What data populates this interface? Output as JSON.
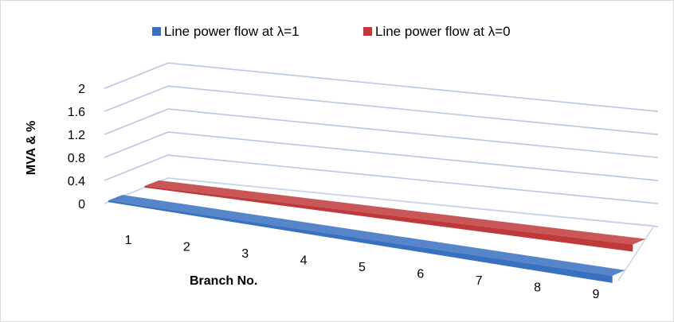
{
  "chart_data": {
    "type": "bar",
    "style": "3d-ribbon",
    "categories": [
      "1",
      "2",
      "3",
      "4",
      "5",
      "6",
      "7",
      "8",
      "9"
    ],
    "series": [
      {
        "name": "Line power flow at  λ=1",
        "color": "#3a70c0",
        "values": [
          0,
          0,
          0,
          0,
          0,
          0,
          0,
          0,
          0
        ]
      },
      {
        "name": "Line power flow at  λ=0",
        "color": "#c0393a",
        "values": [
          0,
          0,
          0,
          0,
          0,
          0,
          0,
          0,
          0
        ]
      }
    ],
    "yticks": [
      "0",
      "0.4",
      "0.8",
      "1.2",
      "1.6",
      "2"
    ],
    "ylim": [
      0,
      2
    ],
    "xlabel": "Branch No.",
    "ylabel": "MVA & %",
    "legend_position": "top",
    "grid": true
  }
}
